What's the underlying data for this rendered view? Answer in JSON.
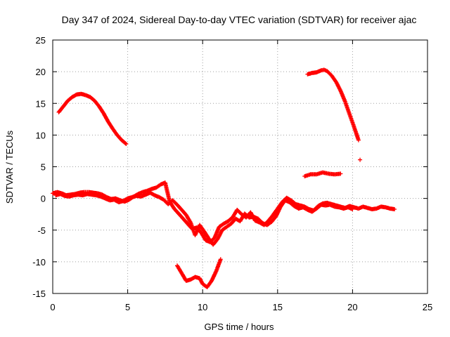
{
  "chart_data": {
    "type": "scatter",
    "title": "Day 347 of 2024, Sidereal Day-to-day VTEC variation (SDTVAR) for receiver ajac",
    "xlabel": "GPS time / hours",
    "ylabel": "SDTVAR / TECUs",
    "xlim": [
      0,
      25
    ],
    "ylim": [
      -15,
      25
    ],
    "xticks": [
      0,
      5,
      10,
      15,
      20,
      25
    ],
    "yticks": [
      -15,
      -10,
      -5,
      0,
      5,
      10,
      15,
      20,
      25
    ],
    "xtick_labels": [
      "0",
      "5",
      "10",
      "15",
      "20",
      "25"
    ],
    "ytick_labels": [
      "-15",
      "-10",
      "-5",
      "0",
      "5",
      "10",
      "15",
      "20",
      "25"
    ],
    "grid": true,
    "marker": "+",
    "color": "#ff0000",
    "series": [
      {
        "name": "arc-a-upper-left",
        "points": [
          [
            0.4,
            13.6
          ],
          [
            0.6,
            14.2
          ],
          [
            0.8,
            14.8
          ],
          [
            1.0,
            15.4
          ],
          [
            1.3,
            16.0
          ],
          [
            1.6,
            16.4
          ],
          [
            1.9,
            16.5
          ],
          [
            2.2,
            16.3
          ],
          [
            2.5,
            16.0
          ],
          [
            2.8,
            15.4
          ],
          [
            3.1,
            14.5
          ],
          [
            3.4,
            13.4
          ],
          [
            3.7,
            12.1
          ],
          [
            4.0,
            11.0
          ],
          [
            4.3,
            10.0
          ],
          [
            4.6,
            9.2
          ],
          [
            4.9,
            8.6
          ]
        ]
      },
      {
        "name": "arc-b-upper-right",
        "points": [
          [
            17.0,
            19.6
          ],
          [
            17.3,
            19.8
          ],
          [
            17.6,
            19.9
          ],
          [
            17.9,
            20.2
          ],
          [
            18.1,
            20.3
          ],
          [
            18.3,
            20.1
          ],
          [
            18.6,
            19.4
          ],
          [
            18.9,
            18.4
          ],
          [
            19.2,
            17.0
          ],
          [
            19.5,
            15.3
          ],
          [
            19.8,
            13.3
          ],
          [
            20.1,
            11.3
          ],
          [
            20.4,
            9.2
          ]
        ]
      },
      {
        "name": "isolated-point",
        "points": [
          [
            20.5,
            6.1
          ]
        ]
      },
      {
        "name": "arc-c-mid-right",
        "points": [
          [
            16.8,
            3.5
          ],
          [
            17.2,
            3.8
          ],
          [
            17.6,
            3.8
          ],
          [
            18.0,
            4.1
          ],
          [
            18.4,
            3.9
          ],
          [
            18.8,
            3.8
          ],
          [
            19.2,
            3.9
          ]
        ]
      },
      {
        "name": "arc-d-lower",
        "points": [
          [
            8.3,
            -10.6
          ],
          [
            8.6,
            -11.8
          ],
          [
            8.9,
            -13.0
          ],
          [
            9.2,
            -12.8
          ],
          [
            9.5,
            -12.4
          ],
          [
            9.8,
            -12.6
          ],
          [
            10.0,
            -13.5
          ],
          [
            10.3,
            -14.0
          ],
          [
            10.6,
            -13.0
          ],
          [
            10.9,
            -11.5
          ],
          [
            11.2,
            -9.6
          ]
        ]
      },
      {
        "name": "cluster-1",
        "points": [
          [
            0.0,
            0.8
          ],
          [
            0.3,
            1.0
          ],
          [
            0.6,
            0.8
          ],
          [
            0.9,
            0.5
          ],
          [
            1.2,
            0.6
          ],
          [
            1.5,
            0.7
          ],
          [
            1.8,
            0.9
          ],
          [
            2.1,
            1.0
          ],
          [
            2.4,
            1.0
          ],
          [
            2.7,
            0.9
          ],
          [
            3.0,
            0.8
          ],
          [
            3.3,
            0.6
          ],
          [
            3.6,
            0.2
          ],
          [
            3.9,
            -0.1
          ],
          [
            4.2,
            0.0
          ],
          [
            4.5,
            -0.3
          ],
          [
            4.8,
            -0.5
          ],
          [
            5.1,
            -0.2
          ],
          [
            5.4,
            0.3
          ],
          [
            5.7,
            0.7
          ],
          [
            6.0,
            1.0
          ],
          [
            6.3,
            1.2
          ],
          [
            6.6,
            1.5
          ],
          [
            6.9,
            1.7
          ],
          [
            7.2,
            2.2
          ],
          [
            7.5,
            2.5
          ],
          [
            7.8,
            -0.5
          ],
          [
            8.1,
            -1.6
          ],
          [
            8.4,
            -2.4
          ],
          [
            8.7,
            -3.2
          ],
          [
            9.0,
            -4.0
          ],
          [
            9.3,
            -4.8
          ],
          [
            9.6,
            -4.6
          ],
          [
            9.9,
            -5.4
          ],
          [
            10.2,
            -6.6
          ],
          [
            10.5,
            -6.9
          ],
          [
            10.8,
            -6.2
          ],
          [
            11.1,
            -4.5
          ],
          [
            11.4,
            -4.0
          ],
          [
            11.7,
            -3.6
          ],
          [
            12.0,
            -3.0
          ],
          [
            12.3,
            -1.8
          ],
          [
            12.6,
            -2.5
          ],
          [
            12.9,
            -3.0
          ],
          [
            13.2,
            -2.2
          ],
          [
            13.5,
            -3.5
          ],
          [
            13.8,
            -3.8
          ],
          [
            14.1,
            -4.2
          ],
          [
            14.4,
            -3.5
          ],
          [
            14.7,
            -2.6
          ],
          [
            15.0,
            -1.6
          ],
          [
            15.3,
            -0.6
          ],
          [
            15.6,
            0.1
          ],
          [
            15.9,
            -0.3
          ],
          [
            16.2,
            -0.9
          ],
          [
            16.5,
            -1.1
          ],
          [
            16.8,
            -1.3
          ],
          [
            17.1,
            -1.7
          ],
          [
            17.4,
            -1.9
          ],
          [
            17.7,
            -1.2
          ],
          [
            18.0,
            -0.8
          ],
          [
            18.3,
            -0.7
          ],
          [
            18.6,
            -0.9
          ],
          [
            18.9,
            -1.1
          ],
          [
            19.2,
            -1.3
          ],
          [
            19.5,
            -1.5
          ],
          [
            19.8,
            -1.2
          ],
          [
            20.1,
            -1.4
          ],
          [
            20.4,
            -1.6
          ],
          [
            20.7,
            -1.3
          ],
          [
            21.0,
            -1.5
          ],
          [
            21.3,
            -1.7
          ],
          [
            21.6,
            -1.6
          ],
          [
            21.9,
            -1.3
          ],
          [
            22.2,
            -1.4
          ],
          [
            22.5,
            -1.6
          ],
          [
            22.8,
            -1.7
          ]
        ]
      },
      {
        "name": "cluster-2",
        "points": [
          [
            0.2,
            0.5
          ],
          [
            0.5,
            0.7
          ],
          [
            0.8,
            0.4
          ],
          [
            1.1,
            0.3
          ],
          [
            1.4,
            0.5
          ],
          [
            1.7,
            0.6
          ],
          [
            2.0,
            0.5
          ],
          [
            2.3,
            0.7
          ],
          [
            2.6,
            0.6
          ],
          [
            2.9,
            0.5
          ],
          [
            3.2,
            0.3
          ],
          [
            3.5,
            0.0
          ],
          [
            3.8,
            -0.3
          ],
          [
            4.1,
            -0.2
          ],
          [
            4.4,
            -0.6
          ],
          [
            4.7,
            -0.4
          ],
          [
            5.0,
            0.0
          ],
          [
            5.3,
            0.2
          ],
          [
            5.6,
            0.4
          ],
          [
            5.9,
            0.3
          ],
          [
            6.2,
            0.6
          ],
          [
            6.5,
            0.9
          ],
          [
            6.8,
            0.5
          ],
          [
            7.1,
            0.2
          ],
          [
            7.4,
            -0.2
          ],
          [
            7.7,
            -0.9
          ],
          [
            8.0,
            -0.3
          ],
          [
            8.3,
            -1.0
          ],
          [
            8.6,
            -1.8
          ],
          [
            8.9,
            -2.6
          ],
          [
            9.2,
            -3.8
          ],
          [
            9.5,
            -5.8
          ],
          [
            9.8,
            -4.2
          ],
          [
            10.1,
            -5.2
          ],
          [
            10.4,
            -6.3
          ],
          [
            10.7,
            -7.3
          ],
          [
            11.0,
            -6.4
          ],
          [
            11.3,
            -5.0
          ],
          [
            11.6,
            -4.5
          ],
          [
            11.9,
            -4.0
          ],
          [
            12.2,
            -3.2
          ],
          [
            12.5,
            -3.6
          ],
          [
            12.8,
            -2.4
          ],
          [
            13.1,
            -3.0
          ],
          [
            13.4,
            -2.9
          ],
          [
            13.7,
            -3.2
          ],
          [
            14.0,
            -3.9
          ],
          [
            14.3,
            -4.2
          ],
          [
            14.6,
            -3.7
          ],
          [
            14.9,
            -2.8
          ],
          [
            15.2,
            -1.3
          ],
          [
            15.5,
            -0.3
          ],
          [
            15.8,
            -0.6
          ],
          [
            16.1,
            -1.2
          ],
          [
            16.4,
            -1.6
          ],
          [
            16.7,
            -1.4
          ],
          [
            17.0,
            -1.8
          ],
          [
            17.3,
            -2.1
          ],
          [
            17.6,
            -1.6
          ],
          [
            17.9,
            -1.0
          ],
          [
            18.2,
            -1.1
          ],
          [
            18.5,
            -1.0
          ],
          [
            18.8,
            -1.3
          ],
          [
            19.1,
            -1.4
          ],
          [
            19.4,
            -1.6
          ],
          [
            19.7,
            -1.4
          ],
          [
            20.0,
            -1.7
          ]
        ]
      }
    ]
  }
}
